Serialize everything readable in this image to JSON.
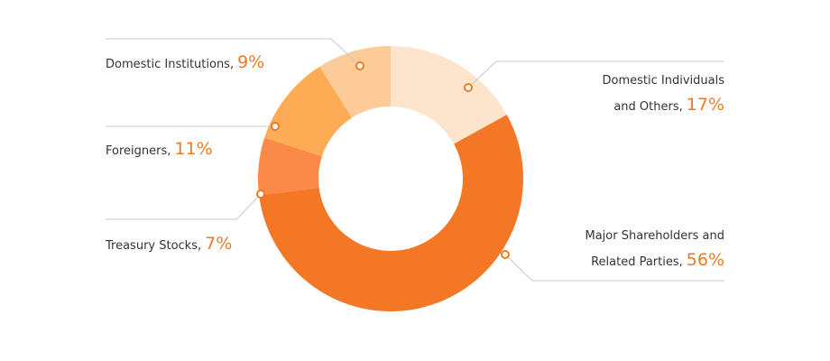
{
  "chart_data": {
    "type": "donut",
    "categories": [
      "Domestic Individuals and Others,",
      "Major Shareholders and Related Parties,",
      "Treasury Stocks,",
      "Foreigners,",
      "Domestic Institutions,"
    ],
    "values": [
      17,
      56,
      7,
      11,
      9
    ],
    "value_labels": [
      "17%",
      "56%",
      "7%",
      "11%",
      "9%"
    ],
    "colors": [
      "#fde4cc",
      "#f47725",
      "#fb8a48",
      "#fdab55",
      "#fdcb98"
    ]
  }
}
